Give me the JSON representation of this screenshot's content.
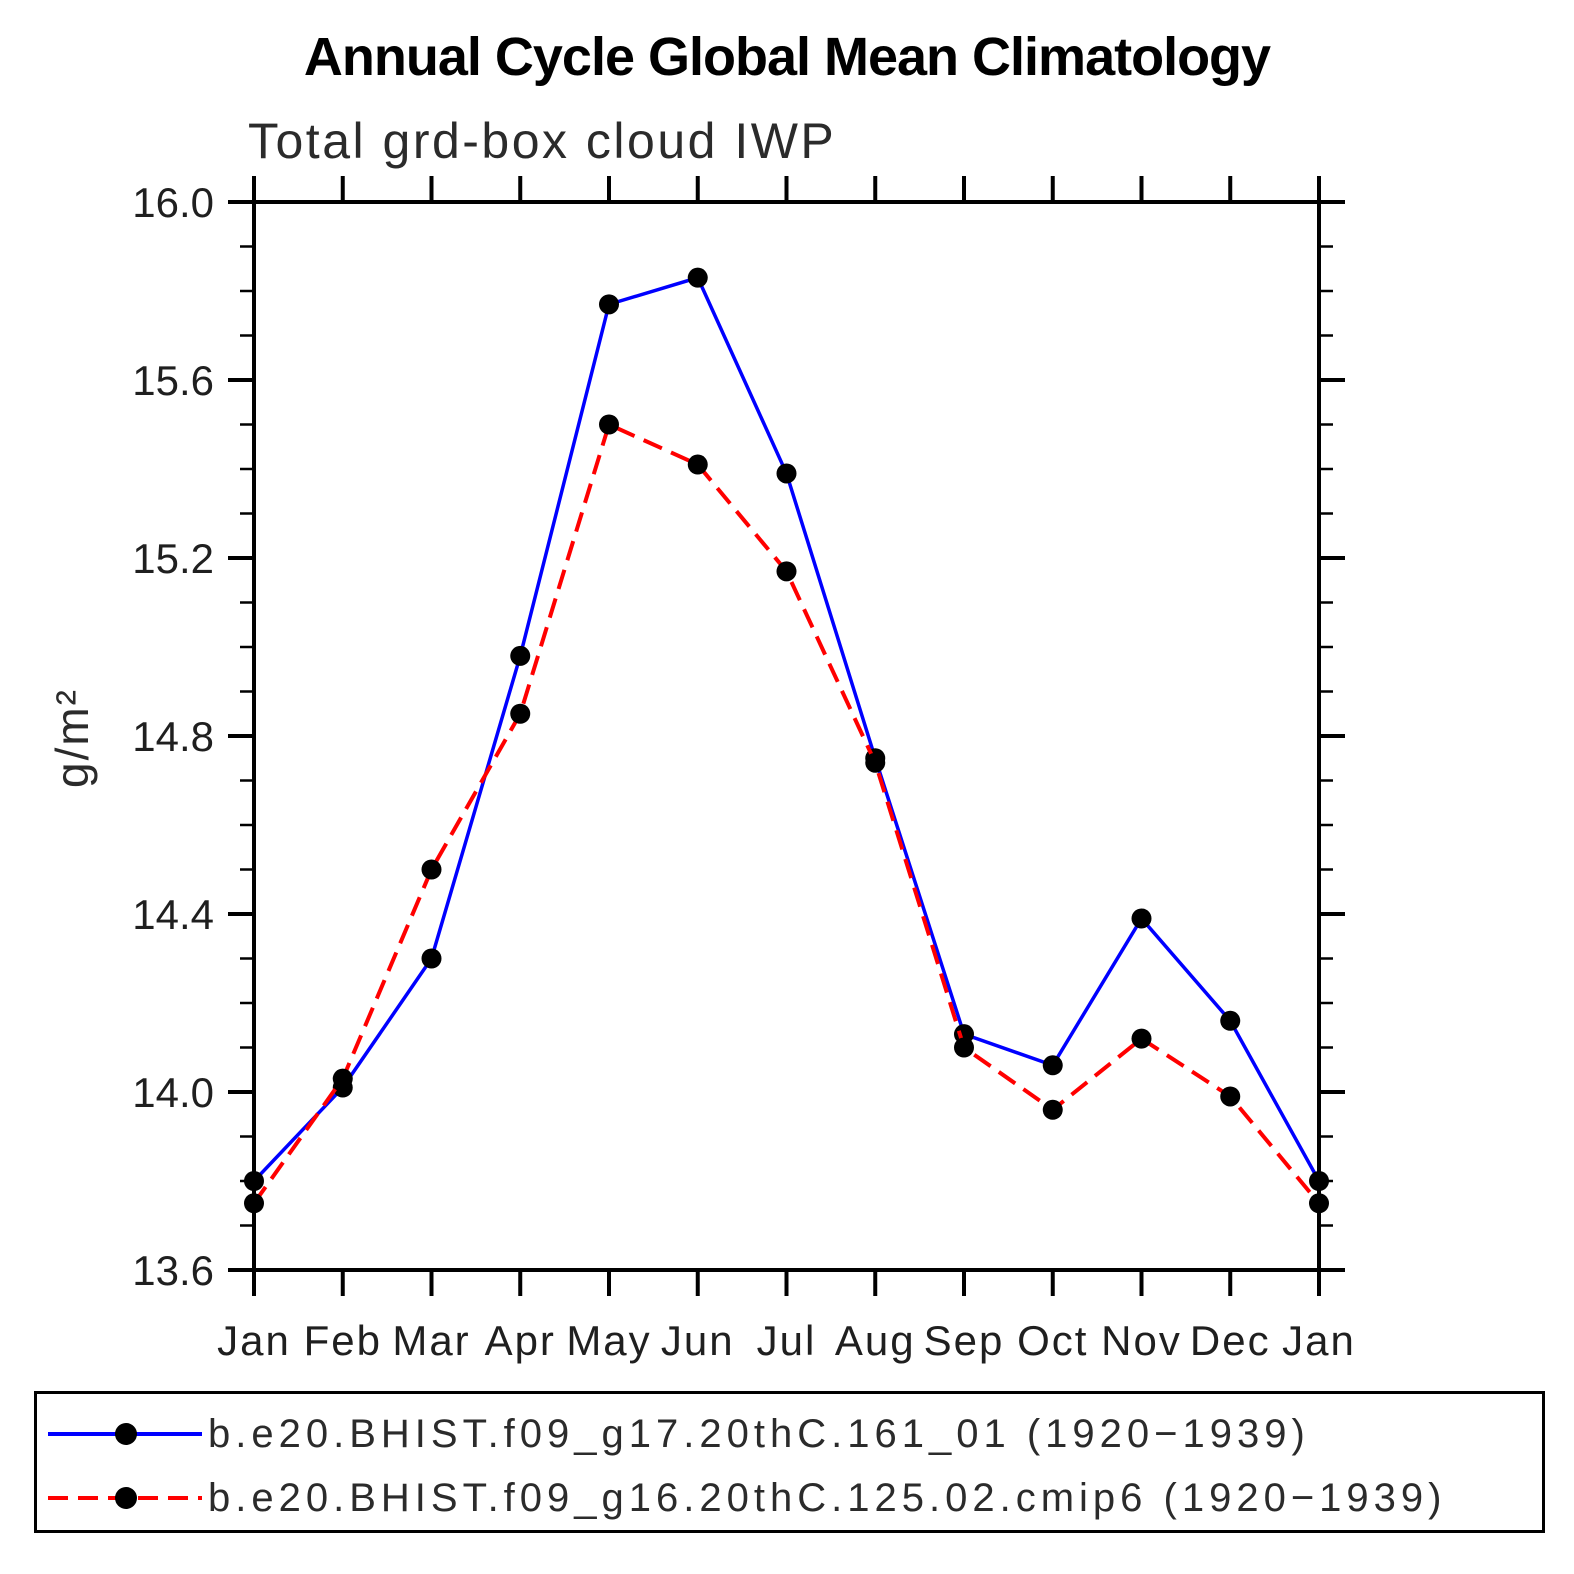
{
  "chart_data": {
    "type": "line",
    "title": "Annual Cycle Global Mean Climatology",
    "subtitle": "Total grd-box cloud IWP",
    "ylabel": "g/m²",
    "xlabel": "",
    "x_categories": [
      "Jan",
      "Feb",
      "Mar",
      "Apr",
      "May",
      "Jun",
      "Jul",
      "Aug",
      "Sep",
      "Oct",
      "Nov",
      "Dec",
      "Jan"
    ],
    "ylim": [
      13.6,
      16.0
    ],
    "y_major_ticks": [
      13.6,
      14.0,
      14.4,
      14.8,
      15.2,
      15.6,
      16.0
    ],
    "y_tick_labels": [
      "13.6",
      "14.0",
      "14.4",
      "14.8",
      "15.2",
      "15.6",
      "16.0"
    ],
    "y_minor_step": 0.1,
    "grid": "off",
    "legend_position": "bottom",
    "marker_color": "#000000",
    "series": [
      {
        "name": "b.e20.BHIST.f09_g17.20thC.161_01 (1920−1939)",
        "color": "#0000ff",
        "style": "solid",
        "marker": "circle",
        "values": [
          13.8,
          14.01,
          14.3,
          14.98,
          15.77,
          15.83,
          15.39,
          14.75,
          14.13,
          14.06,
          14.39,
          14.16,
          13.8
        ]
      },
      {
        "name": "b.e20.BHIST.f09_g16.20thC.125.02.cmip6 (1920−1939)",
        "color": "#ff0000",
        "style": "dashed",
        "marker": "circle",
        "values": [
          13.75,
          14.03,
          14.5,
          14.85,
          15.5,
          15.41,
          15.17,
          14.74,
          14.1,
          13.96,
          14.12,
          13.99,
          13.75
        ]
      }
    ]
  }
}
